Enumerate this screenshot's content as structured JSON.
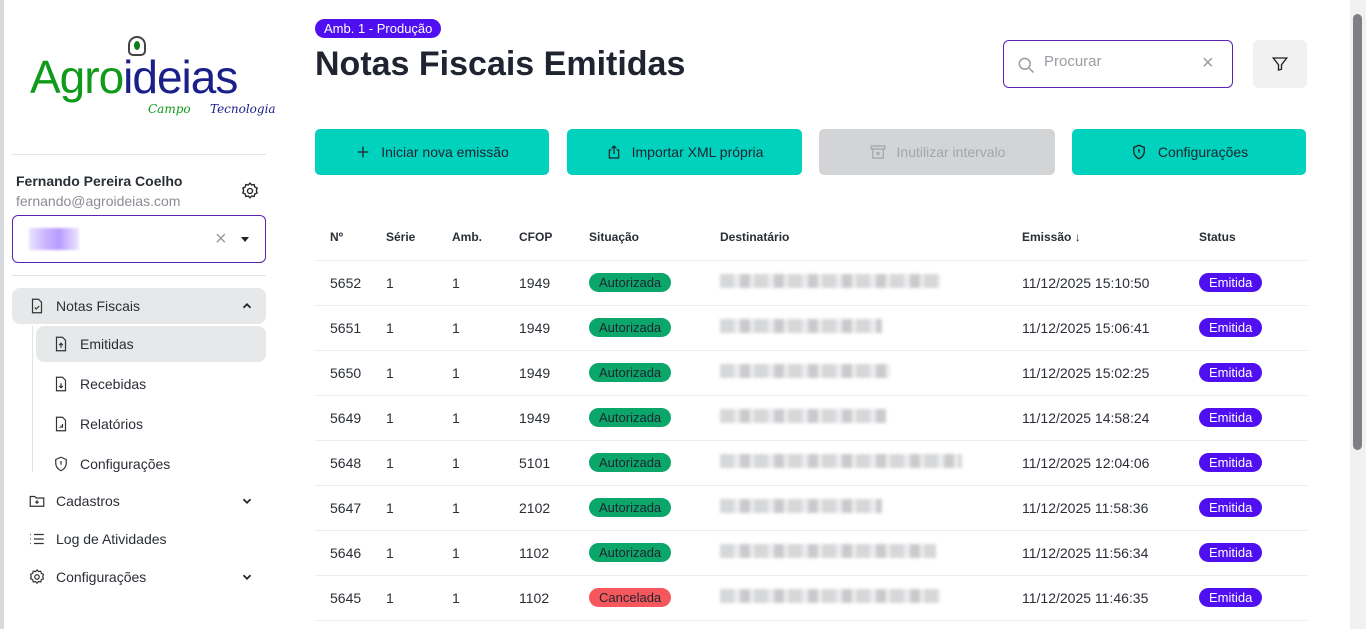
{
  "logo": {
    "text_a": "Agro",
    "text_b": "ideias",
    "tag1": "Campo",
    "tag2": "Tecnologia"
  },
  "user": {
    "name": "Fernando Pereira Coelho",
    "email": "fernando@agroideias.com"
  },
  "sidebar": {
    "items": [
      {
        "label": "Notas Fiscais",
        "icon": "file-check-icon",
        "expanded": true
      },
      {
        "label": "Emitidas",
        "icon": "file-upload-icon",
        "active": true
      },
      {
        "label": "Recebidas",
        "icon": "file-download-icon"
      },
      {
        "label": "Relatórios",
        "icon": "file-chart-icon"
      },
      {
        "label": "Configurações",
        "icon": "shield-alert-icon"
      },
      {
        "label": "Cadastros",
        "icon": "folder-plus-icon"
      },
      {
        "label": "Log de Atividades",
        "icon": "list-icon"
      },
      {
        "label": "Configurações",
        "icon": "gear-icon"
      }
    ]
  },
  "header": {
    "env_badge": "Amb. 1 - Produção",
    "title": "Notas Fiscais Emitidas",
    "search_placeholder": "Procurar"
  },
  "toolbar": {
    "new": "Iniciar nova emissão",
    "import": "Importar XML própria",
    "void": "Inutilizar intervalo",
    "config": "Configurações"
  },
  "colors": {
    "accent": "#00d2be",
    "primary": "#4f0ff0",
    "authorized": "#0aa66a",
    "cancelled": "#f5575c"
  },
  "table": {
    "headers": [
      "Nº",
      "Série",
      "Amb.",
      "CFOP",
      "Situação",
      "Destinatário",
      "Emissão ↓",
      "Status"
    ],
    "rows": [
      {
        "n": "5652",
        "serie": "1",
        "amb": "1",
        "cfop": "1949",
        "situacao": "Autorizada",
        "emissao": "11/12/2025 15:10:50",
        "status": "Emitida"
      },
      {
        "n": "5651",
        "serie": "1",
        "amb": "1",
        "cfop": "1949",
        "situacao": "Autorizada",
        "emissao": "11/12/2025 15:06:41",
        "status": "Emitida"
      },
      {
        "n": "5650",
        "serie": "1",
        "amb": "1",
        "cfop": "1949",
        "situacao": "Autorizada",
        "emissao": "11/12/2025 15:02:25",
        "status": "Emitida"
      },
      {
        "n": "5649",
        "serie": "1",
        "amb": "1",
        "cfop": "1949",
        "situacao": "Autorizada",
        "emissao": "11/12/2025 14:58:24",
        "status": "Emitida"
      },
      {
        "n": "5648",
        "serie": "1",
        "amb": "1",
        "cfop": "5101",
        "situacao": "Autorizada",
        "emissao": "11/12/2025 12:04:06",
        "status": "Emitida"
      },
      {
        "n": "5647",
        "serie": "1",
        "amb": "1",
        "cfop": "2102",
        "situacao": "Autorizada",
        "emissao": "11/12/2025 11:58:36",
        "status": "Emitida"
      },
      {
        "n": "5646",
        "serie": "1",
        "amb": "1",
        "cfop": "1102",
        "situacao": "Autorizada",
        "emissao": "11/12/2025 11:56:34",
        "status": "Emitida"
      },
      {
        "n": "5645",
        "serie": "1",
        "amb": "1",
        "cfop": "1102",
        "situacao": "Cancelada",
        "emissao": "11/12/2025 11:46:35",
        "status": "Emitida"
      }
    ]
  }
}
